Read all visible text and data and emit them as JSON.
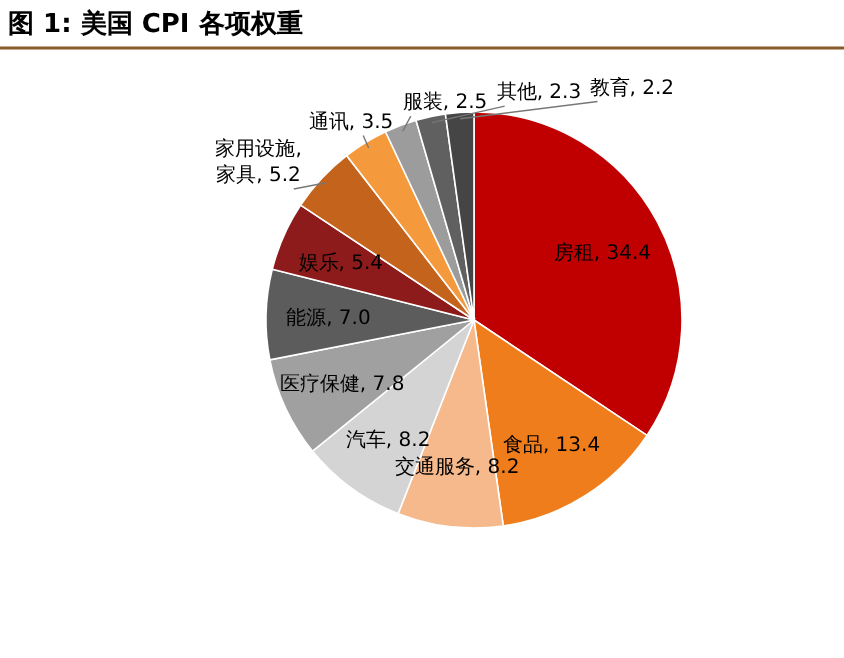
{
  "chart_data": {
    "type": "pie",
    "title": "图 1: 美国 CPI 各项权重",
    "categories": [
      "房租",
      "食品",
      "交通服务",
      "汽车",
      "医疗保健",
      "能源",
      "娱乐",
      "家用设施, 家具",
      "通讯",
      "服装",
      "其他",
      "教育"
    ],
    "values": [
      34.4,
      13.4,
      8.2,
      8.2,
      7.8,
      7.0,
      5.4,
      5.2,
      3.5,
      2.5,
      2.3,
      2.2
    ],
    "colors": [
      "#c00000",
      "#f07d1c",
      "#f6b98c",
      "#d4d4d4",
      "#a0a0a0",
      "#5c5c5c",
      "#8e1b1b",
      "#c4631c",
      "#f59a3c",
      "#9c9c9c",
      "#606060",
      "#454545"
    ],
    "value_labels": [
      ", 34.4",
      ", 13.4",
      ", 8.2",
      ", 8.2",
      ", 7.8",
      ", 7.0",
      ", 5.4",
      ", 5.2",
      ", 3.5",
      ", 2.5",
      ", 2.3",
      ", 2.2"
    ]
  }
}
